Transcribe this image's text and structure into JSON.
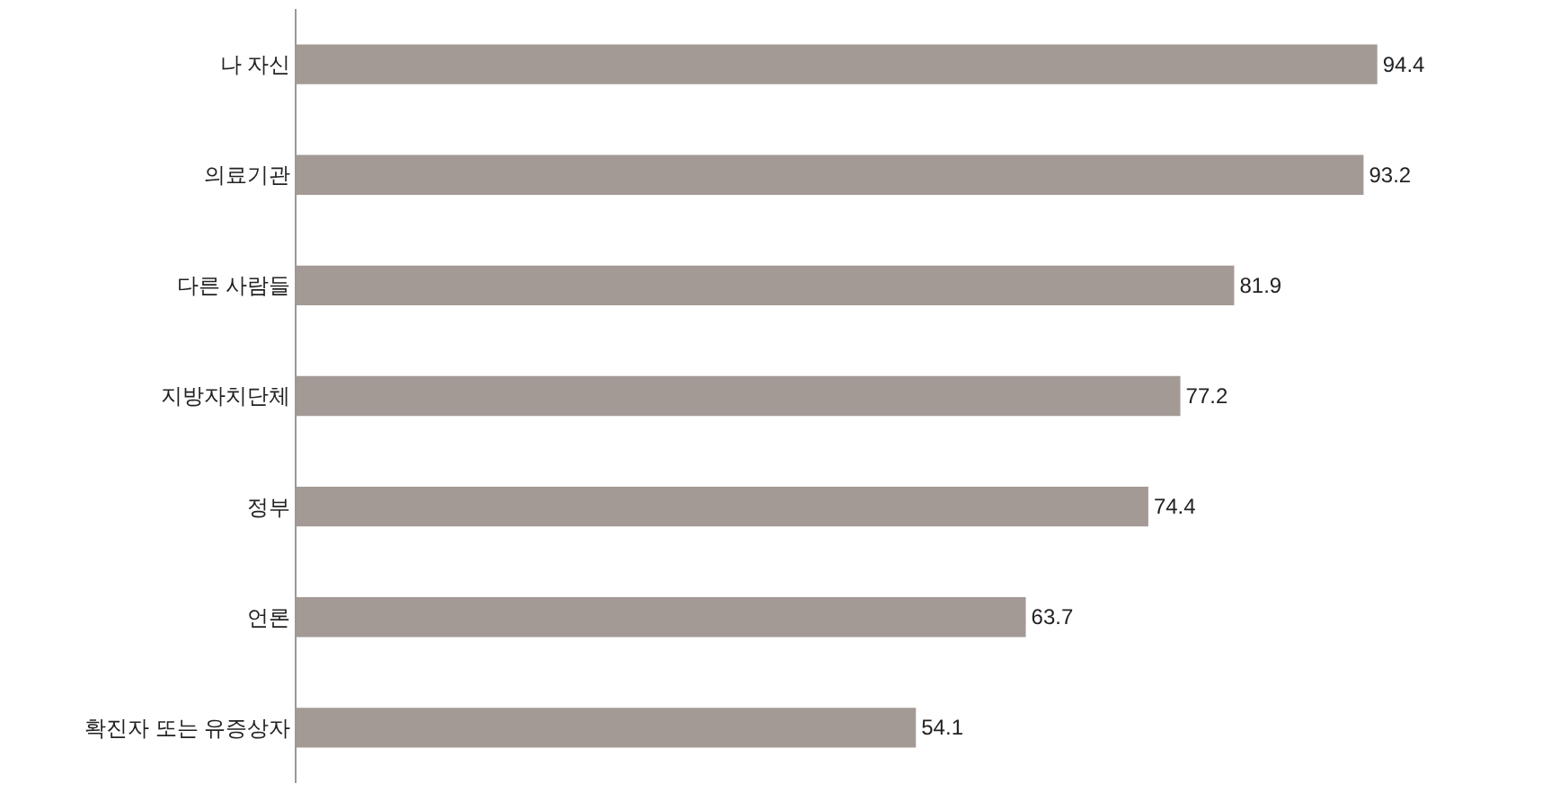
{
  "chart_data": {
    "type": "bar",
    "orientation": "horizontal",
    "categories": [
      "나 자신",
      "의료기관",
      "다른 사람들",
      "지방자치단체",
      "정부",
      "언론",
      "확진자 또는 유증상자"
    ],
    "values": [
      94.4,
      93.2,
      81.9,
      77.2,
      74.4,
      63.7,
      54.1
    ],
    "color": "#a39a95",
    "data_labels": true
  }
}
